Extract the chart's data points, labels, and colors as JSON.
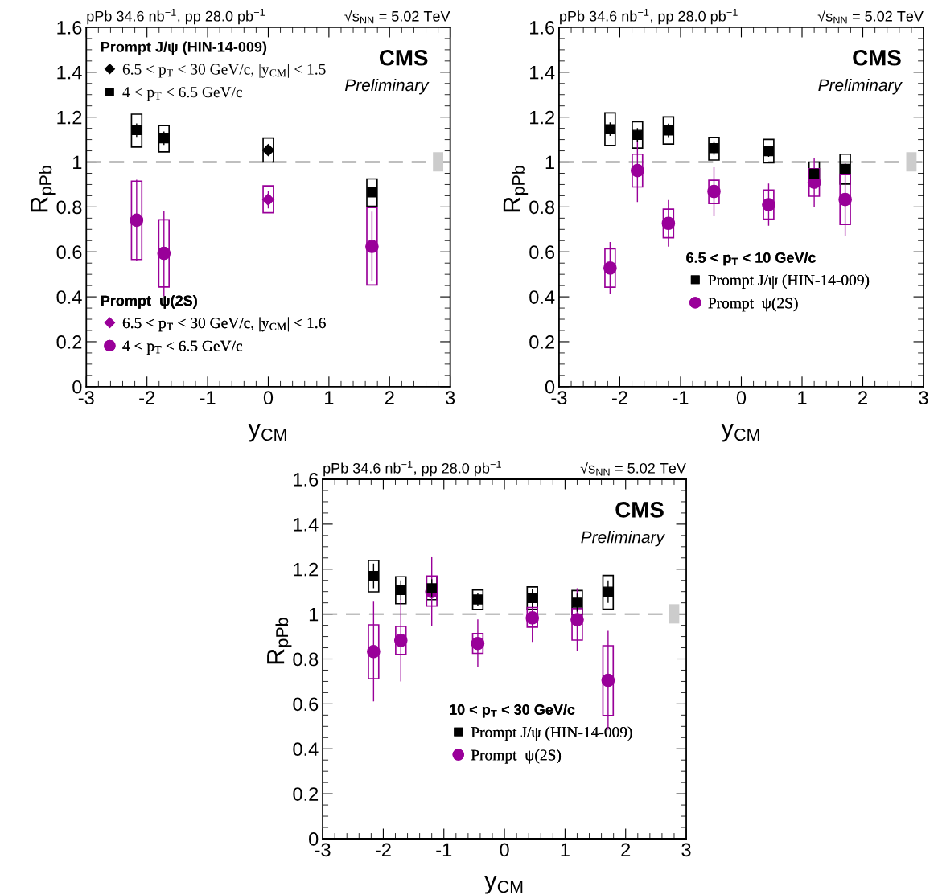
{
  "chart_data": [
    {
      "type": "scatter",
      "xlabel": "y$_{CM}$",
      "ylabel": "R$_{pPb}$",
      "xlim": [
        -3,
        3
      ],
      "xticks": [
        -3,
        -2,
        -1,
        0,
        1,
        2,
        3
      ],
      "ylim": [
        0,
        1.6
      ],
      "yticks": [
        0,
        0.2,
        0.4,
        0.6,
        0.8,
        1,
        1.2,
        1.4,
        1.6
      ],
      "grid": false,
      "legend": "left",
      "annotations": [
        "pPb 34.6 nb$^{−1}$, pp 28.0 pb$^{−1}$",
        "√s$_{NN}$ = 5.02 TeV",
        "CMS",
        "Preliminary",
        "Prompt J/ψ (HIN-14-009)",
        "Prompt  ψ(2S)"
      ],
      "ref_lines": [
        {
          "axis": "y",
          "value": 1,
          "color": "#808080",
          "line_style": "dashed"
        }
      ],
      "series": [
        {
          "type": "bar",
          "color": "#000000",
          "x": [
            -2.17,
            -1.72,
            1.71
          ],
          "base": [
            1.067,
            1.045,
            0.803
          ],
          "values": [
            0.146,
            0.117,
            0.122
          ]
        },
        {
          "type": "bar",
          "color": "#000000",
          "x": [
            0
          ],
          "base": [
            1.0
          ],
          "values": [
            0.107
          ]
        },
        {
          "type": "bar",
          "color": "#990099",
          "x": [
            -2.17,
            -1.72,
            1.71
          ],
          "base": [
            0.566,
            0.444,
            0.453
          ],
          "values": [
            0.349,
            0.299,
            0.344
          ]
        },
        {
          "type": "bar",
          "color": "#990099",
          "x": [
            0
          ],
          "base": [
            0.774
          ],
          "values": [
            0.12
          ]
        },
        {
          "type": "bar",
          "colors": [
            "#cccccc"
          ],
          "x": [
            2.8
          ],
          "base": [
            0.958
          ],
          "values": [
            0.086
          ]
        },
        {
          "name": "6.5 < p$_{T}$ < 30 GeV/c, |y$_{CM}$| < 1.5",
          "color": "#000000",
          "marker": "diamond",
          "x": [
            0
          ],
          "values": [
            1.053
          ],
          "errors": [
            0.02
          ]
        },
        {
          "name": "4 < p$_{T}$ < 6.5 GeV/c",
          "color": "#000000",
          "marker": "square",
          "x": [
            -2.17,
            -1.72,
            1.71
          ],
          "values": [
            1.142,
            1.106,
            0.865
          ],
          "errors": [
            0.03,
            0.03,
            0.02
          ]
        },
        {
          "name": "6.5 < p$_{T}$ < 30 GeV/c, |y$_{CM}$| < 1.6",
          "color": "#990099",
          "marker": "diamond",
          "x": [
            0
          ],
          "values": [
            0.833
          ],
          "errors": [
            0.04
          ]
        },
        {
          "name": "4 < p$_{T}$ < 6.5 GeV/c",
          "color": "#990099",
          "marker": "circle",
          "x": [
            -2.17,
            -1.72,
            1.71
          ],
          "values": [
            0.741,
            0.593,
            0.624
          ],
          "errors": [
            0.18,
            0.19,
            0.155
          ]
        }
      ]
    },
    {
      "type": "scatter",
      "xlabel": "y$_{CM}$",
      "ylabel": "R$_{pPb}$",
      "xlim": [
        -3,
        3
      ],
      "xticks": [
        -3,
        -2,
        -1,
        0,
        1,
        2,
        3
      ],
      "ylim": [
        0,
        1.6
      ],
      "yticks": [
        0,
        0.2,
        0.4,
        0.6,
        0.8,
        1,
        1.2,
        1.4,
        1.6
      ],
      "grid": false,
      "legend": "bottom",
      "legend_title": "6.5 < p$_{T}$ < 10 GeV/c",
      "annotations": [
        "pPb 34.6 nb$^{−1}$, pp 28.0 pb$^{−1}$",
        "√s$_{NN}$ = 5.02 TeV",
        "CMS",
        "Preliminary"
      ],
      "ref_lines": [
        {
          "axis": "y",
          "value": 1,
          "color": "#808080",
          "line_style": "dashed"
        }
      ],
      "series": [
        {
          "type": "bar",
          "color": "#000000",
          "x": [
            -2.16,
            -1.71,
            -1.2,
            -0.45,
            0.45,
            1.2,
            1.71
          ],
          "base": [
            1.074,
            1.062,
            1.08,
            1.009,
            0.997,
            0.898,
            0.902
          ],
          "values": [
            0.145,
            0.117,
            0.121,
            0.101,
            0.104,
            0.102,
            0.133
          ]
        },
        {
          "type": "bar",
          "color": "#990099",
          "x": [
            -2.16,
            -1.71,
            -1.2,
            -0.45,
            0.45,
            1.2,
            1.71
          ],
          "base": [
            0.443,
            0.889,
            0.663,
            0.815,
            0.746,
            0.848,
            0.722
          ],
          "values": [
            0.171,
            0.146,
            0.127,
            0.104,
            0.129,
            0.122,
            0.222
          ]
        },
        {
          "type": "bar",
          "colors": [
            "#cccccc"
          ],
          "x": [
            2.8
          ],
          "base": [
            0.958
          ],
          "values": [
            0.086
          ]
        },
        {
          "name": "Prompt J/ψ (HIN-14-009)",
          "color": "#000000",
          "marker": "square",
          "x": [
            -2.16,
            -1.71,
            -1.2,
            -0.45,
            0.45,
            1.2,
            1.71
          ],
          "values": [
            1.146,
            1.121,
            1.141,
            1.062,
            1.048,
            0.948,
            0.97
          ],
          "errors": [
            0.03,
            0.03,
            0.03,
            0.03,
            0.025,
            0.02,
            0.02
          ]
        },
        {
          "name": "Prompt  ψ(2S)",
          "color": "#990099",
          "marker": "circle",
          "x": [
            -2.16,
            -1.71,
            -1.2,
            -0.45,
            0.45,
            1.2,
            1.71
          ],
          "values": [
            0.528,
            0.962,
            0.727,
            0.869,
            0.81,
            0.91,
            0.833
          ],
          "errors": [
            0.116,
            0.14,
            0.104,
            0.108,
            0.094,
            0.11,
            0.162
          ]
        }
      ]
    },
    {
      "type": "scatter",
      "xlabel": "y$_{CM}$",
      "ylabel": "R$_{pPb}$",
      "xlim": [
        -3,
        3
      ],
      "xticks": [
        -3,
        -2,
        -1,
        0,
        1,
        2,
        3
      ],
      "ylim": [
        0,
        1.6
      ],
      "yticks": [
        0,
        0.2,
        0.4,
        0.6,
        0.8,
        1,
        1.2,
        1.4,
        1.6
      ],
      "grid": false,
      "legend": "bottom",
      "legend_title": "10 < p$_{T}$ < 30 GeV/c",
      "annotations": [
        "pPb 34.6 nb$^{−1}$, pp 28.0 pb$^{−1}$",
        "√s$_{NN}$ = 5.02 TeV",
        "CMS",
        "Preliminary"
      ],
      "ref_lines": [
        {
          "axis": "y",
          "value": 1,
          "color": "#808080",
          "line_style": "dashed"
        }
      ],
      "series": [
        {
          "type": "bar",
          "color": "#000000",
          "x": [
            -2.16,
            -1.71,
            -1.2,
            -0.44,
            0.46,
            1.2,
            1.71
          ],
          "base": [
            1.099,
            1.046,
            1.064,
            1.021,
            1.021,
            0.997,
            1.022
          ],
          "values": [
            0.14,
            0.12,
            0.103,
            0.086,
            0.1,
            0.108,
            0.15
          ]
        },
        {
          "type": "bar",
          "color": "#990099",
          "x": [
            -2.16,
            -1.71,
            -1.2,
            -0.44,
            0.46,
            1.2,
            1.71
          ],
          "base": [
            0.712,
            0.82,
            1.036,
            0.825,
            0.942,
            0.884,
            0.548
          ],
          "values": [
            0.24,
            0.125,
            0.133,
            0.088,
            0.087,
            0.14,
            0.311
          ]
        },
        {
          "type": "bar",
          "colors": [
            "#cccccc"
          ],
          "x": [
            2.8
          ],
          "base": [
            0.958
          ],
          "values": [
            0.086
          ]
        },
        {
          "name": "Prompt J/ψ (HIN-14-009)",
          "color": "#000000",
          "marker": "square",
          "x": [
            -2.16,
            -1.71,
            -1.2,
            -0.44,
            0.46,
            1.2,
            1.71
          ],
          "values": [
            1.17,
            1.107,
            1.115,
            1.065,
            1.071,
            1.051,
            1.1
          ],
          "errors": [
            0.055,
            0.043,
            0.04,
            0.03,
            0.04,
            0.04,
            0.05
          ]
        },
        {
          "name": "Prompt  ψ(2S)",
          "color": "#990099",
          "marker": "circle",
          "x": [
            -2.16,
            -1.71,
            -1.2,
            -0.44,
            0.46,
            1.2,
            1.71
          ],
          "values": [
            0.833,
            0.883,
            1.1,
            0.869,
            0.983,
            0.975,
            0.705
          ],
          "errors": [
            0.222,
            0.183,
            0.153,
            0.107,
            0.107,
            0.14,
            0.22
          ]
        }
      ]
    }
  ]
}
